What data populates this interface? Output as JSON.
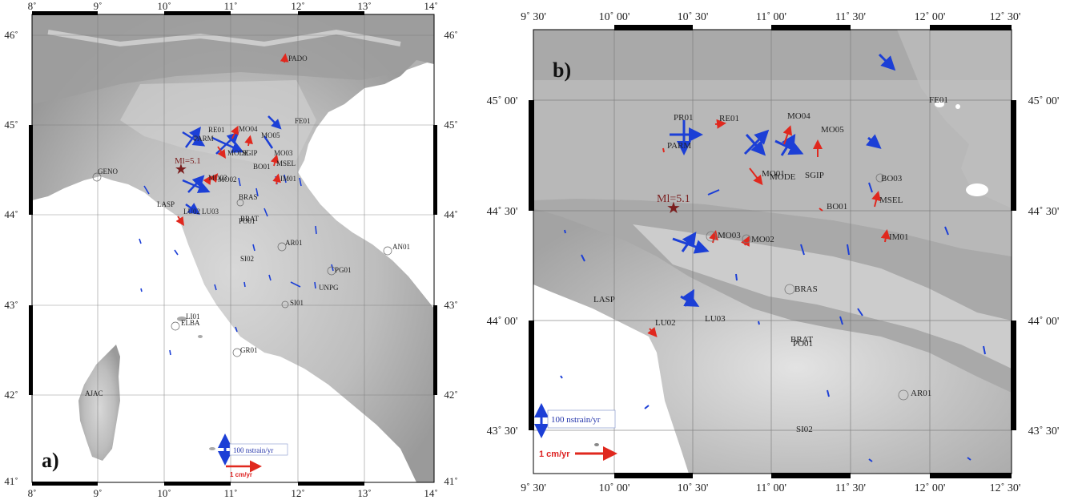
{
  "panel_a": {
    "label": "a)",
    "lon_ticks": [
      "8˚",
      "9˚",
      "10˚",
      "11˚",
      "12˚",
      "13˚",
      "14˚"
    ],
    "lat_ticks": [
      "46˚",
      "45˚",
      "44˚",
      "43˚",
      "42˚",
      "41˚"
    ],
    "stations": [
      "PADO",
      "RE01",
      "MO04",
      "MO05",
      "PARM",
      "MODE",
      "SGIP",
      "MO03",
      "MSEL",
      "BO01",
      "IM01",
      "MO02",
      "MO03",
      "BRAS",
      "LASP",
      "LU02",
      "LU03",
      "FE01",
      "GENO",
      "PO01",
      "BRAT",
      "AR01",
      "AN01",
      "SI02",
      "PG01",
      "UNPG",
      "SI01",
      "LI01",
      "ELBA",
      "GR01",
      "AJAC"
    ],
    "event_label": "Ml=5.1",
    "strain_scale": "100 nstrain/yr",
    "velocity_scale": "1 cm/yr"
  },
  "panel_b": {
    "label": "b)",
    "lon_ticks": [
      "9˚ 30'",
      "10˚ 00'",
      "10˚ 30'",
      "11˚ 00'",
      "11˚ 30'",
      "12˚ 00'",
      "12˚ 30'"
    ],
    "lat_ticks": [
      "45˚ 00'",
      "44˚ 30'",
      "44˚ 00'",
      "43˚ 30'"
    ],
    "stations": [
      "PR01",
      "RE01",
      "PARM",
      "MO04",
      "MO05",
      "FE01",
      "MO01",
      "MODE",
      "SGIP",
      "BO03",
      "MSEL",
      "BO01",
      "MO03",
      "MO02",
      "IM01",
      "BRAS",
      "LASP",
      "LU02",
      "LU03",
      "BRAT",
      "PO01",
      "AR01",
      "SI02"
    ],
    "event_label": "Ml=5.1",
    "strain_scale": "100 nstrain/yr",
    "velocity_scale": "1 cm/yr"
  },
  "colors": {
    "strain": "#1c3fd6",
    "velocity": "#e0281e",
    "event": "#7a1f1f"
  }
}
